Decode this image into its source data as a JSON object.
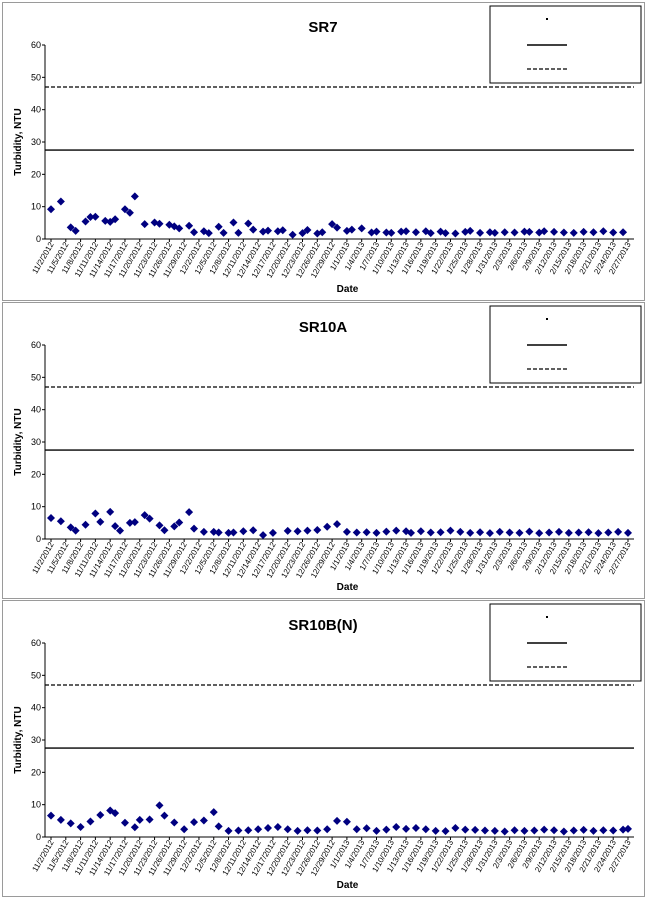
{
  "chart_data": [
    {
      "type": "scatter",
      "title": "SR7",
      "xlabel": "Date",
      "ylabel": "Turbidity, NTU",
      "ylim": [
        0,
        60
      ],
      "yticks": [
        0,
        10,
        20,
        30,
        40,
        50,
        60
      ],
      "x_tick_labels": [
        "11/2/2012",
        "11/5/2012",
        "11/8/2012",
        "11/11/2012",
        "11/14/2012",
        "11/17/2012",
        "11/20/2012",
        "11/23/2012",
        "11/26/2012",
        "11/29/2012",
        "12/2/2012",
        "12/5/2012",
        "12/8/2012",
        "12/11/2012",
        "12/14/2012",
        "12/17/2012",
        "12/20/2012",
        "12/23/2012",
        "12/26/2012",
        "12/29/2012",
        "1/1/2013",
        "1/4/2013",
        "1/7/2013",
        "1/10/2013",
        "1/13/2013",
        "1/16/2013",
        "1/19/2013",
        "1/22/2013",
        "1/25/2013",
        "1/28/2013",
        "1/31/2013",
        "2/3/2013",
        "2/6/2013",
        "2/9/2013",
        "2/12/2013",
        "2/15/2013",
        "2/18/2013",
        "2/21/2013",
        "2/24/2013",
        "2/27/2013"
      ],
      "series": [
        {
          "name": "SR7",
          "marker": "diamond",
          "color": "#000080",
          "x": [
            "11/2/2012",
            "11/4/2012",
            "11/6/2012",
            "11/7/2012",
            "11/9/2012",
            "11/10/2012",
            "11/11/2012",
            "11/13/2012",
            "11/14/2012",
            "11/15/2012",
            "11/17/2012",
            "11/18/2012",
            "11/19/2012",
            "11/21/2012",
            "11/23/2012",
            "11/24/2012",
            "11/26/2012",
            "11/27/2012",
            "11/28/2012",
            "11/30/2012",
            "12/1/2012",
            "12/3/2012",
            "12/4/2012",
            "12/6/2012",
            "12/7/2012",
            "12/9/2012",
            "12/10/2012",
            "12/12/2012",
            "12/13/2012",
            "12/15/2012",
            "12/16/2012",
            "12/18/2012",
            "12/19/2012",
            "12/21/2012",
            "12/23/2012",
            "12/24/2012",
            "12/26/2012",
            "12/27/2012",
            "12/29/2012",
            "12/30/2012",
            "1/1/2013",
            "1/2/2013",
            "1/4/2013",
            "1/6/2013",
            "1/7/2013",
            "1/9/2013",
            "1/10/2013",
            "1/12/2013",
            "1/13/2013",
            "1/15/2013",
            "1/17/2013",
            "1/18/2013",
            "1/20/2013",
            "1/21/2013",
            "1/23/2013",
            "1/25/2013",
            "1/26/2013",
            "1/28/2013",
            "1/30/2013",
            "1/31/2013",
            "2/2/2013",
            "2/4/2013",
            "2/6/2013",
            "2/7/2013",
            "2/9/2013",
            "2/10/2013",
            "2/12/2013",
            "2/14/2013",
            "2/16/2013",
            "2/18/2013",
            "2/20/2013",
            "2/22/2013",
            "2/24/2013",
            "2/26/2013"
          ],
          "y": [
            9.2,
            11.6,
            3.6,
            2.5,
            5.4,
            6.8,
            6.9,
            5.6,
            5.3,
            6.1,
            9.2,
            8.1,
            13.2,
            4.6,
            5.1,
            4.7,
            4.4,
            3.9,
            3.3,
            4.1,
            2.1,
            2.4,
            1.8,
            3.8,
            1.9,
            5.1,
            1.9,
            4.8,
            2.9,
            2.3,
            2.6,
            2.4,
            2.7,
            1.3,
            1.8,
            2.8,
            1.7,
            2.1,
            4.6,
            3.5,
            2.5,
            2.9,
            3.3,
            2.0,
            2.3,
            2.0,
            1.9,
            2.3,
            2.4,
            2.1,
            2.4,
            1.8,
            2.3,
            1.8,
            1.7,
            2.2,
            2.5,
            1.9,
            2.1,
            1.9,
            2.1,
            2.0,
            2.3,
            2.2,
            2.0,
            2.4,
            2.2,
            2.0,
            1.9,
            2.2,
            2.1,
            2.4,
            2.0,
            2.1
          ]
        },
        {
          "name": "Reference line (solid)",
          "style": "solid",
          "y": 27.5
        },
        {
          "name": "Reference line (dashed)",
          "style": "dashed",
          "y": 47
        }
      ],
      "legend": {
        "position": "top-right",
        "labels": [
          "",
          "",
          ""
        ]
      },
      "grid": false
    },
    {
      "type": "scatter",
      "title": "SR10A",
      "xlabel": "Date",
      "ylabel": "Turbidity, NTU",
      "ylim": [
        0,
        60
      ],
      "yticks": [
        0,
        10,
        20,
        30,
        40,
        50,
        60
      ],
      "x_tick_labels": [
        "11/2/2012",
        "11/5/2012",
        "11/8/2012",
        "11/11/2012",
        "11/14/2012",
        "11/17/2012",
        "11/20/2012",
        "11/23/2012",
        "11/26/2012",
        "11/29/2012",
        "12/2/2012",
        "12/5/2012",
        "12/8/2012",
        "12/11/2012",
        "12/14/2012",
        "12/17/2012",
        "12/20/2012",
        "12/23/2012",
        "12/26/2012",
        "12/29/2012",
        "1/1/2013",
        "1/4/2013",
        "1/7/2013",
        "1/10/2013",
        "1/13/2013",
        "1/16/2013",
        "1/19/2013",
        "1/22/2013",
        "1/25/2013",
        "1/28/2013",
        "1/31/2013",
        "2/3/2013",
        "2/6/2013",
        "2/9/2013",
        "2/12/2013",
        "2/15/2013",
        "2/18/2013",
        "2/21/2013",
        "2/24/2013",
        "2/27/2013"
      ],
      "series": [
        {
          "name": "SR10A",
          "marker": "diamond",
          "color": "#000080",
          "x": [
            "11/2/2012",
            "11/4/2012",
            "11/6/2012",
            "11/7/2012",
            "11/9/2012",
            "11/11/2012",
            "11/12/2012",
            "11/14/2012",
            "11/15/2012",
            "11/16/2012",
            "11/18/2012",
            "11/19/2012",
            "11/21/2012",
            "11/22/2012",
            "11/24/2012",
            "11/25/2012",
            "11/27/2012",
            "11/28/2012",
            "11/30/2012",
            "12/1/2012",
            "12/3/2012",
            "12/5/2012",
            "12/6/2012",
            "12/8/2012",
            "12/9/2012",
            "12/11/2012",
            "12/13/2012",
            "12/15/2012",
            "12/17/2012",
            "12/20/2012",
            "12/22/2012",
            "12/24/2012",
            "12/26/2012",
            "12/28/2012",
            "12/30/2012",
            "1/1/2013",
            "1/3/2013",
            "1/5/2013",
            "1/7/2013",
            "1/9/2013",
            "1/11/2013",
            "1/13/2013",
            "1/14/2013",
            "1/16/2013",
            "1/18/2013",
            "1/20/2013",
            "1/22/2013",
            "1/24/2013",
            "1/26/2013",
            "1/28/2013",
            "1/30/2013",
            "2/1/2013",
            "2/3/2013",
            "2/5/2013",
            "2/7/2013",
            "2/9/2013",
            "2/11/2013",
            "2/13/2013",
            "2/15/2013",
            "2/17/2013",
            "2/19/2013",
            "2/21/2013",
            "2/23/2013",
            "2/25/2013",
            "2/27/2013"
          ],
          "y": [
            6.5,
            5.5,
            3.6,
            2.6,
            4.4,
            7.9,
            5.3,
            8.4,
            4.0,
            2.6,
            5.0,
            5.2,
            7.4,
            6.3,
            4.2,
            2.7,
            3.9,
            5.1,
            8.3,
            3.2,
            2.2,
            2.2,
            2.0,
            1.9,
            2.0,
            2.4,
            2.7,
            1.2,
            1.9,
            2.5,
            2.4,
            2.6,
            2.8,
            3.8,
            4.6,
            2.2,
            2.0,
            2.1,
            1.9,
            2.3,
            2.6,
            2.4,
            1.9,
            2.4,
            2.0,
            2.1,
            2.6,
            2.2,
            1.9,
            2.1,
            1.8,
            2.2,
            2.0,
            1.9,
            2.3,
            1.8,
            2.0,
            2.2,
            1.9,
            2.0,
            2.1,
            1.8,
            2.0,
            2.2,
            1.9
          ]
        },
        {
          "name": "Reference line (solid)",
          "style": "solid",
          "y": 27.5
        },
        {
          "name": "Reference line (dashed)",
          "style": "dashed",
          "y": 47
        }
      ],
      "legend": {
        "position": "top-right",
        "labels": [
          "",
          "",
          ""
        ]
      },
      "grid": false
    },
    {
      "type": "scatter",
      "title": "SR10B(N)",
      "xlabel": "Date",
      "ylabel": "Turbidity, NTU",
      "ylim": [
        0,
        60
      ],
      "yticks": [
        0,
        10,
        20,
        30,
        40,
        50,
        60
      ],
      "x_tick_labels": [
        "11/2/2012",
        "11/5/2012",
        "11/8/2012",
        "11/11/2012",
        "11/14/2012",
        "11/17/2012",
        "11/20/2012",
        "11/23/2012",
        "11/26/2012",
        "11/29/2012",
        "12/2/2012",
        "12/5/2012",
        "12/8/2012",
        "12/11/2012",
        "12/14/2012",
        "12/17/2012",
        "12/20/2012",
        "12/23/2012",
        "12/26/2012",
        "12/29/2012",
        "1/1/2013",
        "1/4/2013",
        "1/7/2013",
        "1/10/2013",
        "1/13/2013",
        "1/16/2013",
        "1/19/2013",
        "1/22/2013",
        "1/25/2013",
        "1/28/2013",
        "1/31/2013",
        "2/3/2013",
        "2/6/2013",
        "2/9/2013",
        "2/12/2013",
        "2/15/2013",
        "2/18/2013",
        "2/21/2013",
        "2/24/2013",
        "2/27/2013"
      ],
      "series": [
        {
          "name": "SR10B(N)",
          "marker": "diamond",
          "color": "#000080",
          "x": [
            "11/2/2012",
            "11/4/2012",
            "11/6/2012",
            "11/8/2012",
            "11/10/2012",
            "11/12/2012",
            "11/14/2012",
            "11/15/2012",
            "11/17/2012",
            "11/19/2012",
            "11/20/2012",
            "11/22/2012",
            "11/24/2012",
            "11/25/2012",
            "11/27/2012",
            "11/29/2012",
            "12/1/2012",
            "12/3/2012",
            "12/5/2012",
            "12/6/2012",
            "12/8/2012",
            "12/10/2012",
            "12/12/2012",
            "12/14/2012",
            "12/16/2012",
            "12/18/2012",
            "12/20/2012",
            "12/22/2012",
            "12/24/2012",
            "12/26/2012",
            "12/28/2012",
            "12/30/2012",
            "1/1/2013",
            "1/3/2013",
            "1/5/2013",
            "1/7/2013",
            "1/9/2013",
            "1/11/2013",
            "1/13/2013",
            "1/15/2013",
            "1/17/2013",
            "1/19/2013",
            "1/21/2013",
            "1/23/2013",
            "1/25/2013",
            "1/27/2013",
            "1/29/2013",
            "1/31/2013",
            "2/2/2013",
            "2/4/2013",
            "2/6/2013",
            "2/8/2013",
            "2/10/2013",
            "2/12/2013",
            "2/14/2013",
            "2/16/2013",
            "2/18/2013",
            "2/20/2013",
            "2/22/2013",
            "2/24/2013",
            "2/26/2013",
            "2/27/2013"
          ],
          "y": [
            6.6,
            5.3,
            4.2,
            3.1,
            4.8,
            6.8,
            8.2,
            7.4,
            4.4,
            3.0,
            5.3,
            5.4,
            9.8,
            6.6,
            4.5,
            2.4,
            4.6,
            5.1,
            7.7,
            3.3,
            1.9,
            2.0,
            2.1,
            2.4,
            2.8,
            3.1,
            2.4,
            1.9,
            2.1,
            2.0,
            2.4,
            5.0,
            4.7,
            2.4,
            2.7,
            1.9,
            2.3,
            3.1,
            2.5,
            2.8,
            2.4,
            1.9,
            1.8,
            2.8,
            2.3,
            2.2,
            2.0,
            1.9,
            1.7,
            2.1,
            1.9,
            2.0,
            2.3,
            2.1,
            1.7,
            2.0,
            2.2,
            1.9,
            2.1,
            2.0,
            2.3,
            2.5
          ]
        },
        {
          "name": "Reference line (solid)",
          "style": "solid",
          "y": 27.5
        },
        {
          "name": "Reference line (dashed)",
          "style": "dashed",
          "y": 47
        }
      ],
      "legend": {
        "position": "top-right",
        "labels": [
          "",
          "",
          ""
        ]
      },
      "grid": false
    }
  ]
}
